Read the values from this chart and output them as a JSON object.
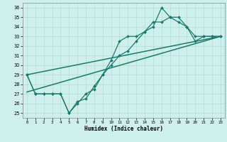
{
  "title": "",
  "xlabel": "Humidex (Indice chaleur)",
  "bg_color": "#cff0ea",
  "grid_color": "#b0ddd5",
  "line_color": "#1a7a6e",
  "xlim": [
    -0.5,
    23.5
  ],
  "ylim": [
    24.5,
    36.5
  ],
  "xticks": [
    0,
    1,
    2,
    3,
    4,
    5,
    6,
    7,
    8,
    9,
    10,
    11,
    12,
    13,
    14,
    15,
    16,
    17,
    18,
    19,
    20,
    21,
    22,
    23
  ],
  "yticks": [
    25,
    26,
    27,
    28,
    29,
    30,
    31,
    32,
    33,
    34,
    35,
    36
  ],
  "lines": [
    {
      "x": [
        0,
        1,
        2,
        3,
        4,
        5,
        6,
        7,
        8,
        9,
        10,
        11,
        12,
        13,
        14,
        15,
        16,
        17,
        18,
        19,
        20,
        21,
        22,
        23
      ],
      "y": [
        29,
        27,
        27,
        27,
        27,
        25,
        26.2,
        26.5,
        27.8,
        29,
        30.5,
        32.5,
        33,
        33,
        33.5,
        34,
        36,
        35,
        34.5,
        34,
        32.5,
        33,
        33,
        33
      ],
      "marker": "D",
      "markersize": 2.0,
      "linewidth": 0.9
    },
    {
      "x": [
        0,
        1,
        2,
        3,
        4,
        5,
        6,
        7,
        8,
        9,
        10,
        11,
        12,
        13,
        14,
        15,
        16,
        17,
        18,
        19,
        20,
        21,
        22,
        23
      ],
      "y": [
        29,
        27,
        27,
        27,
        27,
        25,
        26,
        27,
        27.5,
        29,
        30,
        31,
        31.5,
        32.5,
        33.5,
        34.5,
        34.5,
        35,
        35,
        34,
        33,
        33,
        33,
        33
      ],
      "marker": "D",
      "markersize": 2.0,
      "linewidth": 0.9
    },
    {
      "x": [
        0,
        23
      ],
      "y": [
        27.2,
        33.0
      ],
      "marker": null,
      "markersize": 0,
      "linewidth": 1.1
    },
    {
      "x": [
        0,
        23
      ],
      "y": [
        29.0,
        33.0
      ],
      "marker": null,
      "markersize": 0,
      "linewidth": 1.1
    }
  ]
}
